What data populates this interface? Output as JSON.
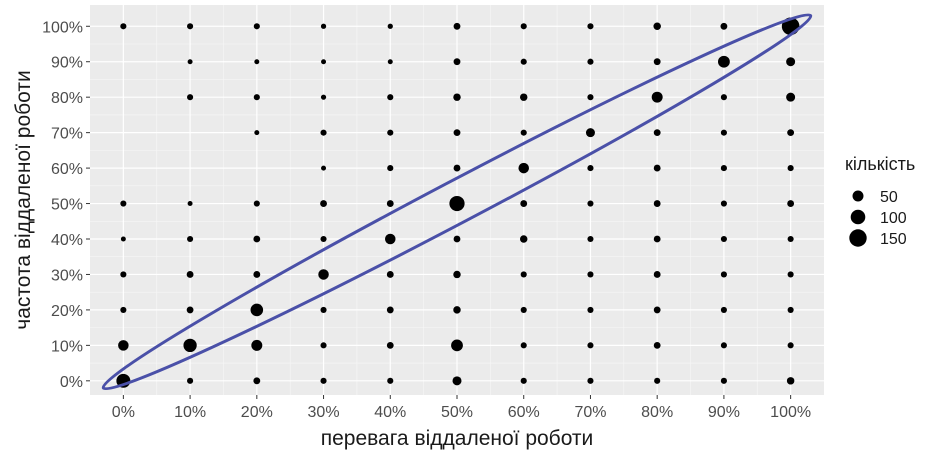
{
  "chart_data": {
    "type": "scatter",
    "title": "",
    "xlabel": "перевага віддаленої роботи",
    "ylabel": "частота віддаленої роботи",
    "xlim": [
      -5,
      105
    ],
    "ylim": [
      -4,
      106
    ],
    "x_ticks": [
      0,
      10,
      20,
      30,
      40,
      50,
      60,
      70,
      80,
      90,
      100
    ],
    "y_ticks": [
      0,
      10,
      20,
      30,
      40,
      50,
      60,
      70,
      80,
      90,
      100
    ],
    "x_tick_labels": [
      "0%",
      "10%",
      "20%",
      "30%",
      "40%",
      "50%",
      "60%",
      "70%",
      "80%",
      "90%",
      "100%"
    ],
    "y_tick_labels": [
      "0%",
      "10%",
      "20%",
      "30%",
      "40%",
      "50%",
      "60%",
      "70%",
      "80%",
      "90%",
      "100%"
    ],
    "grid": true,
    "legend": {
      "title": "кількість",
      "placement": "right",
      "entries": [
        {
          "label": "50",
          "value": 50
        },
        {
          "label": "100",
          "value": 100
        },
        {
          "label": "150",
          "value": 150
        }
      ]
    },
    "annotation": {
      "shape": "ellipse",
      "color": "#4a50a8",
      "from": [
        -3,
        -2
      ],
      "to": [
        103,
        103
      ]
    },
    "points": [
      {
        "x": 0,
        "y": 100,
        "count": 10
      },
      {
        "x": 10,
        "y": 100,
        "count": 10
      },
      {
        "x": 20,
        "y": 100,
        "count": 10
      },
      {
        "x": 30,
        "y": 100,
        "count": 6
      },
      {
        "x": 40,
        "y": 100,
        "count": 6
      },
      {
        "x": 50,
        "y": 100,
        "count": 14
      },
      {
        "x": 60,
        "y": 100,
        "count": 10
      },
      {
        "x": 70,
        "y": 100,
        "count": 10
      },
      {
        "x": 80,
        "y": 100,
        "count": 18
      },
      {
        "x": 90,
        "y": 100,
        "count": 14
      },
      {
        "x": 100,
        "y": 100,
        "count": 155
      },
      {
        "x": 10,
        "y": 90,
        "count": 5
      },
      {
        "x": 20,
        "y": 90,
        "count": 5
      },
      {
        "x": 30,
        "y": 90,
        "count": 5
      },
      {
        "x": 40,
        "y": 90,
        "count": 5
      },
      {
        "x": 50,
        "y": 90,
        "count": 14
      },
      {
        "x": 60,
        "y": 90,
        "count": 10
      },
      {
        "x": 70,
        "y": 90,
        "count": 10
      },
      {
        "x": 80,
        "y": 90,
        "count": 14
      },
      {
        "x": 90,
        "y": 90,
        "count": 60
      },
      {
        "x": 100,
        "y": 90,
        "count": 30
      },
      {
        "x": 10,
        "y": 80,
        "count": 10
      },
      {
        "x": 20,
        "y": 80,
        "count": 10
      },
      {
        "x": 30,
        "y": 80,
        "count": 6
      },
      {
        "x": 40,
        "y": 80,
        "count": 10
      },
      {
        "x": 50,
        "y": 80,
        "count": 18
      },
      {
        "x": 60,
        "y": 80,
        "count": 18
      },
      {
        "x": 70,
        "y": 80,
        "count": 10
      },
      {
        "x": 80,
        "y": 80,
        "count": 50
      },
      {
        "x": 90,
        "y": 80,
        "count": 10
      },
      {
        "x": 100,
        "y": 80,
        "count": 30
      },
      {
        "x": 20,
        "y": 70,
        "count": 5
      },
      {
        "x": 30,
        "y": 70,
        "count": 10
      },
      {
        "x": 40,
        "y": 70,
        "count": 10
      },
      {
        "x": 50,
        "y": 70,
        "count": 14
      },
      {
        "x": 60,
        "y": 70,
        "count": 10
      },
      {
        "x": 70,
        "y": 70,
        "count": 30
      },
      {
        "x": 80,
        "y": 70,
        "count": 14
      },
      {
        "x": 90,
        "y": 70,
        "count": 10
      },
      {
        "x": 100,
        "y": 70,
        "count": 14
      },
      {
        "x": 30,
        "y": 60,
        "count": 5
      },
      {
        "x": 40,
        "y": 60,
        "count": 10
      },
      {
        "x": 50,
        "y": 60,
        "count": 14
      },
      {
        "x": 60,
        "y": 60,
        "count": 45
      },
      {
        "x": 70,
        "y": 60,
        "count": 10
      },
      {
        "x": 80,
        "y": 60,
        "count": 14
      },
      {
        "x": 90,
        "y": 60,
        "count": 10
      },
      {
        "x": 100,
        "y": 60,
        "count": 10
      },
      {
        "x": 0,
        "y": 50,
        "count": 10
      },
      {
        "x": 10,
        "y": 50,
        "count": 5
      },
      {
        "x": 20,
        "y": 50,
        "count": 10
      },
      {
        "x": 30,
        "y": 50,
        "count": 14
      },
      {
        "x": 40,
        "y": 50,
        "count": 14
      },
      {
        "x": 50,
        "y": 50,
        "count": 110
      },
      {
        "x": 60,
        "y": 50,
        "count": 14
      },
      {
        "x": 70,
        "y": 50,
        "count": 10
      },
      {
        "x": 80,
        "y": 50,
        "count": 14
      },
      {
        "x": 90,
        "y": 50,
        "count": 10
      },
      {
        "x": 100,
        "y": 50,
        "count": 14
      },
      {
        "x": 0,
        "y": 40,
        "count": 5
      },
      {
        "x": 10,
        "y": 40,
        "count": 10
      },
      {
        "x": 20,
        "y": 40,
        "count": 14
      },
      {
        "x": 30,
        "y": 40,
        "count": 10
      },
      {
        "x": 40,
        "y": 40,
        "count": 45
      },
      {
        "x": 50,
        "y": 40,
        "count": 14
      },
      {
        "x": 60,
        "y": 40,
        "count": 18
      },
      {
        "x": 70,
        "y": 40,
        "count": 10
      },
      {
        "x": 80,
        "y": 40,
        "count": 14
      },
      {
        "x": 90,
        "y": 40,
        "count": 10
      },
      {
        "x": 100,
        "y": 40,
        "count": 10
      },
      {
        "x": 0,
        "y": 30,
        "count": 10
      },
      {
        "x": 10,
        "y": 30,
        "count": 14
      },
      {
        "x": 20,
        "y": 30,
        "count": 14
      },
      {
        "x": 30,
        "y": 30,
        "count": 45
      },
      {
        "x": 40,
        "y": 30,
        "count": 14
      },
      {
        "x": 50,
        "y": 30,
        "count": 18
      },
      {
        "x": 60,
        "y": 30,
        "count": 10
      },
      {
        "x": 70,
        "y": 30,
        "count": 10
      },
      {
        "x": 80,
        "y": 30,
        "count": 14
      },
      {
        "x": 90,
        "y": 30,
        "count": 10
      },
      {
        "x": 100,
        "y": 30,
        "count": 10
      },
      {
        "x": 0,
        "y": 20,
        "count": 10
      },
      {
        "x": 10,
        "y": 20,
        "count": 14
      },
      {
        "x": 20,
        "y": 20,
        "count": 70
      },
      {
        "x": 30,
        "y": 20,
        "count": 10
      },
      {
        "x": 40,
        "y": 20,
        "count": 14
      },
      {
        "x": 50,
        "y": 20,
        "count": 18
      },
      {
        "x": 60,
        "y": 20,
        "count": 10
      },
      {
        "x": 70,
        "y": 20,
        "count": 10
      },
      {
        "x": 80,
        "y": 20,
        "count": 14
      },
      {
        "x": 90,
        "y": 20,
        "count": 10
      },
      {
        "x": 100,
        "y": 20,
        "count": 10
      },
      {
        "x": 0,
        "y": 10,
        "count": 45
      },
      {
        "x": 10,
        "y": 10,
        "count": 80
      },
      {
        "x": 20,
        "y": 10,
        "count": 50
      },
      {
        "x": 30,
        "y": 10,
        "count": 10
      },
      {
        "x": 40,
        "y": 10,
        "count": 14
      },
      {
        "x": 50,
        "y": 10,
        "count": 60
      },
      {
        "x": 60,
        "y": 10,
        "count": 10
      },
      {
        "x": 70,
        "y": 10,
        "count": 10
      },
      {
        "x": 80,
        "y": 10,
        "count": 14
      },
      {
        "x": 90,
        "y": 10,
        "count": 10
      },
      {
        "x": 100,
        "y": 10,
        "count": 10
      },
      {
        "x": 0,
        "y": 0,
        "count": 90
      },
      {
        "x": 10,
        "y": 0,
        "count": 10
      },
      {
        "x": 20,
        "y": 0,
        "count": 14
      },
      {
        "x": 30,
        "y": 0,
        "count": 10
      },
      {
        "x": 40,
        "y": 0,
        "count": 10
      },
      {
        "x": 50,
        "y": 0,
        "count": 30
      },
      {
        "x": 60,
        "y": 0,
        "count": 10
      },
      {
        "x": 70,
        "y": 0,
        "count": 10
      },
      {
        "x": 80,
        "y": 0,
        "count": 10
      },
      {
        "x": 90,
        "y": 0,
        "count": 10
      },
      {
        "x": 100,
        "y": 0,
        "count": 18
      }
    ]
  }
}
